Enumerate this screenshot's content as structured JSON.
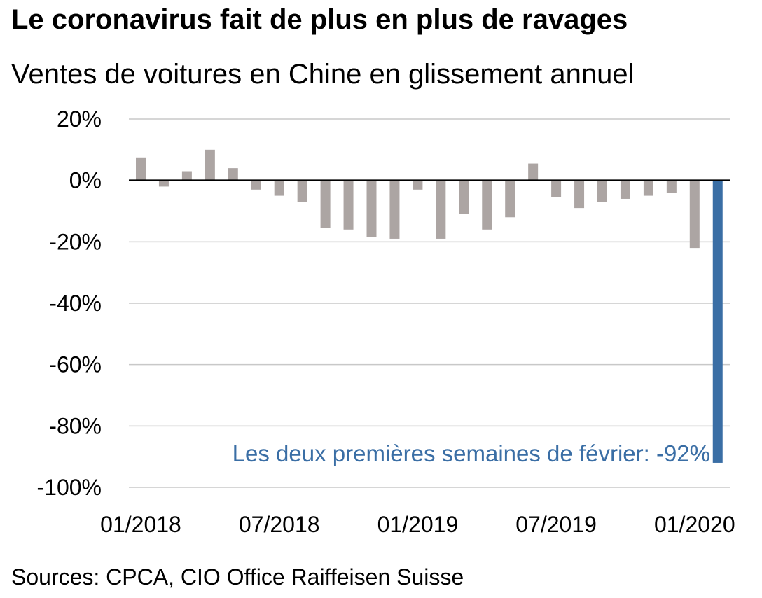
{
  "title": "Le coronavirus fait de plus en plus de ravages",
  "subtitle": "Ventes de voitures en Chine en glissement annuel",
  "source": "Sources: CPCA, CIO Office Raiffeisen Suisse",
  "colors": {
    "bar": "#aca5a3",
    "highlight": "#3a6ea5",
    "grid": "#c8c8c8",
    "axis": "#000000"
  },
  "chart_data": {
    "type": "bar",
    "title": "Le coronavirus fait de plus en plus de ravages",
    "subtitle": "Ventes de voitures en Chine en glissement annuel",
    "ylim": [
      -100,
      20
    ],
    "yticks": [
      20,
      0,
      -20,
      -40,
      -60,
      -80,
      -100
    ],
    "ytick_labels": [
      "20%",
      "0%",
      "-20%",
      "-40%",
      "-60%",
      "-80%",
      "-100%"
    ],
    "xtick_labels": [
      "01/2018",
      "07/2018",
      "01/2019",
      "07/2019",
      "01/2020"
    ],
    "grid": "horizontal",
    "categories": [
      "01/2018",
      "02/2018",
      "03/2018",
      "04/2018",
      "05/2018",
      "06/2018",
      "07/2018",
      "08/2018",
      "09/2018",
      "10/2018",
      "11/2018",
      "12/2018",
      "01/2019",
      "02/2019",
      "03/2019",
      "04/2019",
      "05/2019",
      "06/2019",
      "07/2019",
      "08/2019",
      "09/2019",
      "10/2019",
      "11/2019",
      "12/2019",
      "01/2020",
      "02/2020"
    ],
    "values": [
      7.5,
      -2,
      3,
      10,
      4,
      -3,
      -5,
      -7,
      -15.5,
      -16,
      -18.5,
      -19,
      -3,
      -19,
      -11,
      -16,
      -12,
      5.5,
      -5.5,
      -9,
      -7,
      -6,
      -5,
      -4,
      -22,
      -92
    ],
    "highlight_index": 25,
    "annotation": "Les deux premières semaines de février: -92%"
  }
}
